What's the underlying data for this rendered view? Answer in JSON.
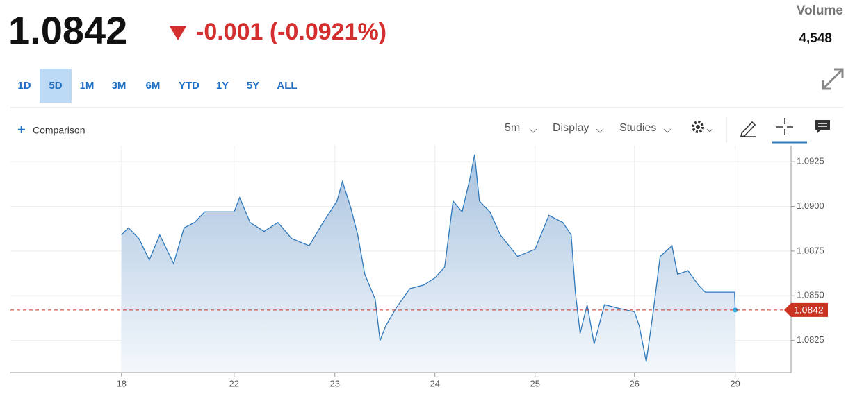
{
  "header": {
    "change": "-0.001 (-0.0921%)",
    "volume_label": "Volume",
    "volume": "4,548",
    "ranges": [
      "1D",
      "5D",
      "1M",
      "3M",
      "6M",
      "YTD",
      "1Y",
      "5Y",
      "ALL"
    ],
    "selected": "5D"
  },
  "toolbar": {
    "comparison": "Comparison",
    "interval": "5m",
    "display": "Display",
    "studies": "Studies"
  },
  "chart_data": {
    "type": "area",
    "series": [
      {
        "color": "#2f78ba",
        "x": [
          0,
          0.069,
          0.174,
          0.278,
          0.382,
          0.521,
          0.625,
          0.729,
          0.833,
          1.125,
          1.181,
          1.285,
          1.424,
          1.563,
          1.701,
          1.875,
          2.014,
          2.153,
          2.208,
          2.292,
          2.361,
          2.431,
          2.535,
          2.583,
          2.639,
          2.743,
          2.882,
          3.021,
          3.132,
          3.229,
          3.313,
          3.403,
          3.479,
          3.528,
          3.576,
          3.681,
          3.785,
          3.958,
          4.132,
          4.271,
          4.41,
          4.493,
          4.535,
          4.583,
          4.653,
          4.722,
          4.826,
          4.965,
          5.125,
          5.174,
          5.243,
          5.313,
          5.382,
          5.5,
          5.556,
          5.66,
          5.764,
          5.833,
          6.125,
          6.132
        ],
        "values": [
          1.0884,
          1.0888,
          1.0882,
          1.087,
          1.0884,
          1.0868,
          1.0888,
          1.0891,
          1.0897,
          1.0897,
          1.0905,
          1.0891,
          1.0886,
          1.0891,
          1.0882,
          1.0878,
          1.0891,
          1.0903,
          1.0914,
          1.0899,
          1.0884,
          1.0862,
          1.0848,
          1.0825,
          1.0833,
          1.0843,
          1.0854,
          1.0856,
          1.086,
          1.0866,
          1.0903,
          1.0897,
          1.0915,
          1.0929,
          1.0903,
          1.0897,
          1.0884,
          1.0872,
          1.0876,
          1.0895,
          1.0891,
          1.0884,
          1.0852,
          1.0829,
          1.0845,
          1.0823,
          1.0845,
          1.0843,
          1.0841,
          1.0833,
          1.0813,
          1.0841,
          1.0872,
          1.0878,
          1.0862,
          1.0864,
          1.0856,
          1.0852,
          1.0852,
          1.0842
        ]
      }
    ],
    "last_value": 1.0842,
    "last_color": "#c9331f",
    "xlim": [
      -1.11,
      6.69
    ],
    "xticks": [
      {
        "value": 0,
        "label": "18"
      },
      {
        "value": 1.125,
        "label": "22"
      },
      {
        "value": 2.132,
        "label": "23"
      },
      {
        "value": 3.132,
        "label": "24"
      },
      {
        "value": 4.132,
        "label": "25"
      },
      {
        "value": 5.125,
        "label": "26"
      },
      {
        "value": 6.132,
        "label": "29"
      }
    ],
    "ylim": [
      1.0807,
      1.0934
    ],
    "yticks": [
      1.0825,
      {
        "value": 1.085,
        "label": "1.0850"
      },
      1.0875,
      {
        "value": 1.09,
        "label": "1.0900"
      },
      1.0925
    ],
    "grid": true
  }
}
